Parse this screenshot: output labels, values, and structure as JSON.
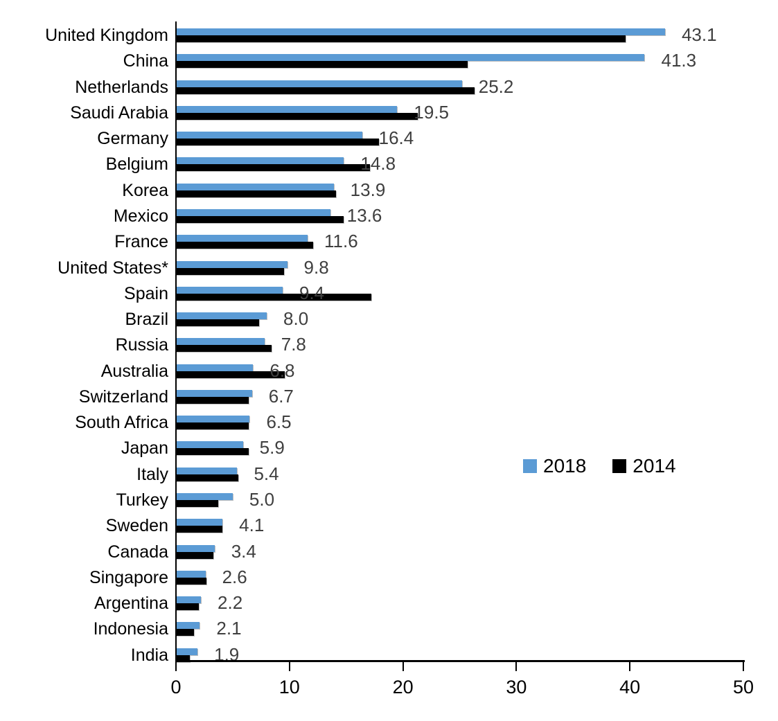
{
  "chart_data": {
    "type": "bar",
    "orientation": "horizontal",
    "title": "",
    "xlabel": "",
    "ylabel": "",
    "xlim": [
      0,
      50
    ],
    "xticks": [
      0,
      10,
      20,
      30,
      40,
      50
    ],
    "grid": false,
    "legend_position": "middle-right",
    "categories": [
      "United Kingdom",
      "China",
      "Netherlands",
      "Saudi Arabia",
      "Germany",
      "Belgium",
      "Korea",
      "Mexico",
      "France",
      "United States*",
      "Spain",
      "Brazil",
      "Russia",
      "Australia",
      "Switzerland",
      "South Africa",
      "Japan",
      "Italy",
      "Turkey",
      "Sweden",
      "Canada",
      "Singapore",
      "Argentina",
      "Indonesia",
      "India"
    ],
    "series": [
      {
        "name": "2018",
        "color": "#5B9BD5",
        "values": [
          43.1,
          41.3,
          25.2,
          19.5,
          16.4,
          14.8,
          13.9,
          13.6,
          11.6,
          9.8,
          9.4,
          8.0,
          7.8,
          6.8,
          6.7,
          6.5,
          5.9,
          5.4,
          5.0,
          4.1,
          3.4,
          2.6,
          2.2,
          2.1,
          1.9
        ],
        "data_labels": [
          "43.1",
          "41.3",
          "25.2",
          "19.5",
          "16.4",
          "14.8",
          "13.9",
          "13.6",
          "11.6",
          "9.8",
          "9.4",
          "8.0",
          "7.8",
          "6.8",
          "6.7",
          "6.5",
          "5.9",
          "5.4",
          "5.0",
          "4.1",
          "3.4",
          "2.6",
          "2.2",
          "2.1",
          "1.9"
        ]
      },
      {
        "name": "2014",
        "color": "#000000",
        "values": [
          39.6,
          25.7,
          26.3,
          21.3,
          17.9,
          17.1,
          14.1,
          14.8,
          12.1,
          9.5,
          17.2,
          7.3,
          8.4,
          9.6,
          6.4,
          6.4,
          6.4,
          5.5,
          3.7,
          4.1,
          3.3,
          2.7,
          2.0,
          1.6,
          1.2
        ]
      }
    ]
  }
}
